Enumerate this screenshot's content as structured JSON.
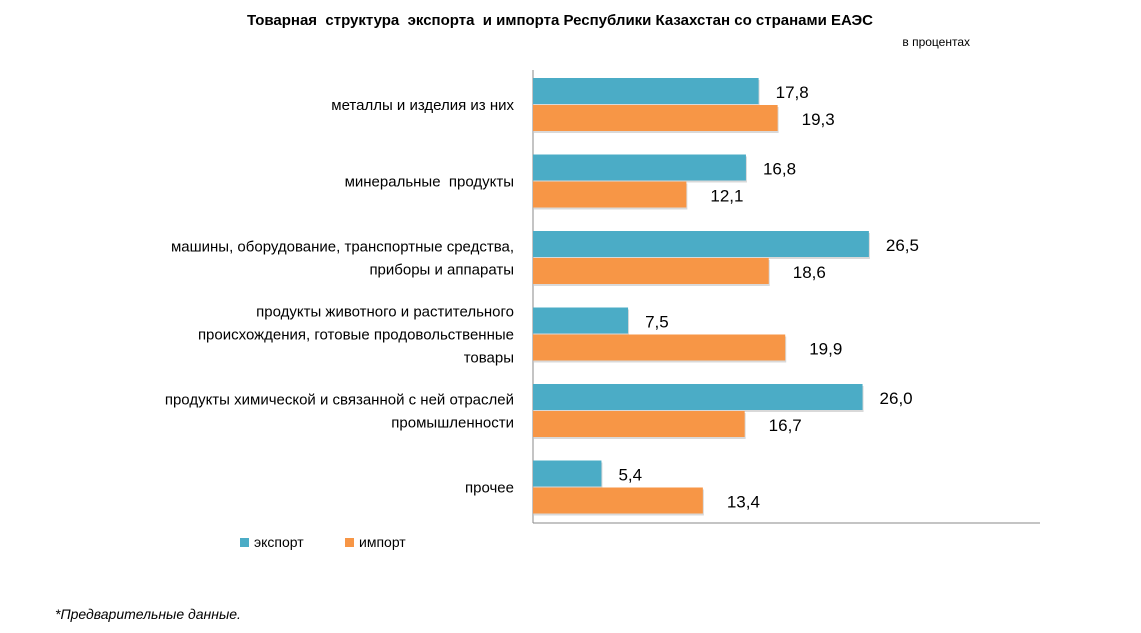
{
  "chart_data": {
    "type": "bar",
    "orientation": "horizontal",
    "title": "Товарная  структура  экспорта  и импорта Республики Казахстан со странами ЕАЭС",
    "subtitle": "в процентах",
    "categories": [
      [
        "металлы и изделия из них"
      ],
      [
        "минеральные  продукты"
      ],
      [
        "машины, оборудование, транспортные средства,",
        "приборы и аппараты"
      ],
      [
        "продукты животного и растительного",
        "происхождения, готовые продовольственные",
        "товары"
      ],
      [
        "продукты химической и связанной с ней отраслей",
        "промышленности"
      ],
      [
        "прочее"
      ]
    ],
    "series": [
      {
        "name": "экспорт",
        "color": "#4BACC6",
        "values": [
          17.8,
          16.8,
          26.5,
          7.5,
          26.0,
          5.4
        ],
        "labels": [
          "17,8",
          "16,8",
          "26,5",
          "7,5",
          "26,0",
          "5,4"
        ]
      },
      {
        "name": "импорт",
        "color": "#F79646",
        "values": [
          19.3,
          12.1,
          18.6,
          19.9,
          16.7,
          13.4
        ],
        "labels": [
          "19,3",
          "12,1",
          "18,6",
          "19,9",
          "16,7",
          "13,4"
        ]
      }
    ],
    "xlim": [
      0,
      40
    ],
    "grid": false,
    "legend": "bottom-left",
    "footnote": "*Предварительные данные."
  }
}
